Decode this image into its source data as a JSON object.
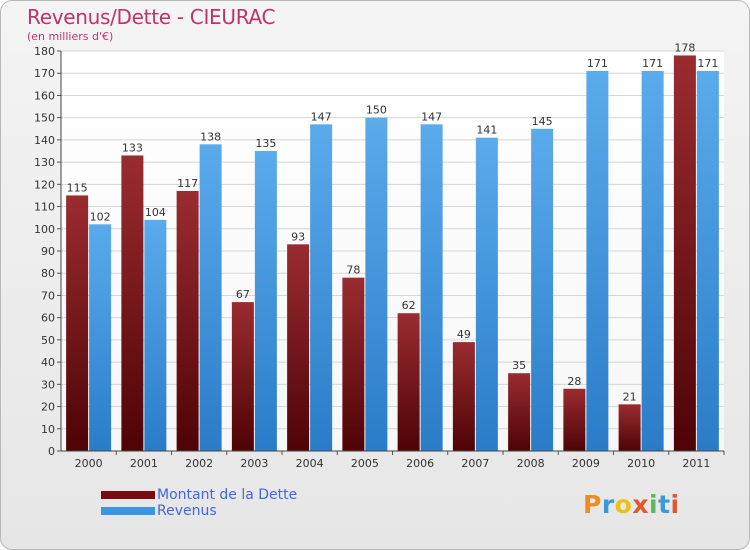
{
  "title": "Revenus/Dette - CIEURAC",
  "subtitle": "(en milliers d'€)",
  "legend": {
    "debt_label": "Montant de la Dette",
    "revenue_label": "Revenus"
  },
  "logo": {
    "text": "Proxiti",
    "letters": [
      {
        "ch": "P",
        "color": "#f08c1e"
      },
      {
        "ch": "r",
        "color": "#3a9ad9"
      },
      {
        "ch": "o",
        "color": "#e8c21a"
      },
      {
        "ch": "x",
        "color": "#e4572e"
      },
      {
        "ch": "i",
        "color": "#5db85c"
      },
      {
        "ch": "t",
        "color": "#3a9ad9"
      },
      {
        "ch": "i",
        "color": "#e4572e"
      }
    ]
  },
  "colors": {
    "debt": "#7a0b10",
    "revenue": "#3c95e0",
    "text": "#333333",
    "accent": "#c0336a"
  },
  "chart_data": {
    "type": "bar",
    "categories": [
      "2000",
      "2001",
      "2002",
      "2003",
      "2004",
      "2005",
      "2006",
      "2007",
      "2008",
      "2009",
      "2010",
      "2011"
    ],
    "series": [
      {
        "name": "Montant de la Dette",
        "values": [
          115,
          133,
          117,
          67,
          93,
          78,
          62,
          49,
          35,
          28,
          21,
          178
        ]
      },
      {
        "name": "Revenus",
        "values": [
          102,
          104,
          138,
          135,
          147,
          150,
          147,
          141,
          145,
          171,
          171,
          171
        ]
      }
    ],
    "ylim": [
      0,
      180
    ],
    "yticks": [
      0,
      10,
      20,
      30,
      40,
      50,
      60,
      70,
      80,
      90,
      100,
      110,
      120,
      130,
      140,
      150,
      160,
      170,
      180
    ],
    "grid": true,
    "legend_position": "bottom-left"
  }
}
